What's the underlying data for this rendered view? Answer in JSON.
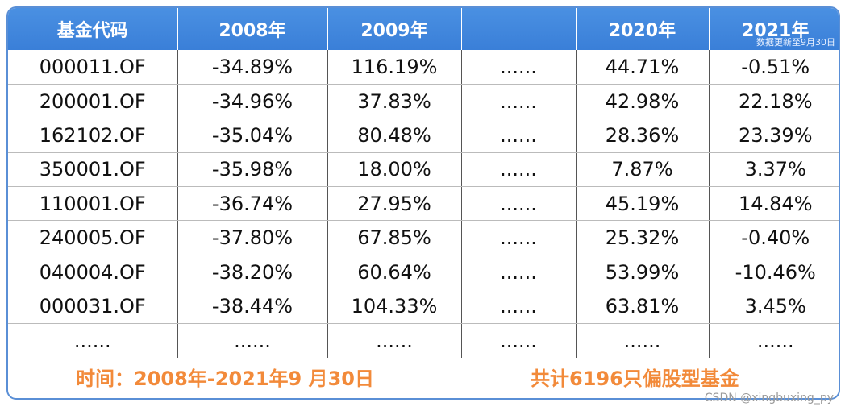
{
  "table": {
    "headers": [
      "基金代码",
      "2008年",
      "2009年",
      "",
      "2020年",
      "2021年"
    ],
    "header_note": "数据更新至9月30日",
    "rows": [
      [
        "000011.OF",
        "-34.89%",
        "116.19%",
        "......",
        "44.71%",
        "-0.51%"
      ],
      [
        "200001.OF",
        "-34.96%",
        "37.83%",
        "......",
        "42.98%",
        "22.18%"
      ],
      [
        "162102.OF",
        "-35.04%",
        "80.48%",
        "......",
        "28.36%",
        "23.39%"
      ],
      [
        "350001.OF",
        "-35.98%",
        "18.00%",
        "......",
        "7.87%",
        "3.37%"
      ],
      [
        "110001.OF",
        "-36.74%",
        "27.95%",
        "......",
        "45.19%",
        "14.84%"
      ],
      [
        "240005.OF",
        "-37.80%",
        "67.85%",
        "......",
        "25.32%",
        "-0.40%"
      ],
      [
        "040004.OF",
        "-38.20%",
        "60.64%",
        "......",
        "53.99%",
        "-10.46%"
      ],
      [
        "000031.OF",
        "-38.44%",
        "104.33%",
        "......",
        "63.81%",
        "3.45%"
      ],
      [
        "......",
        "......",
        "......",
        "......",
        "......",
        "......"
      ]
    ]
  },
  "footer": {
    "time_text": "时间：2008年-2021年9 月30日",
    "count_text": "共计6196只偏股型基金"
  },
  "watermark": "CSDN @xingbuxing_py",
  "colors": {
    "header_bg": "#4a90e2",
    "border": "#5a8fd6",
    "footer_text": "#f28a3a"
  }
}
